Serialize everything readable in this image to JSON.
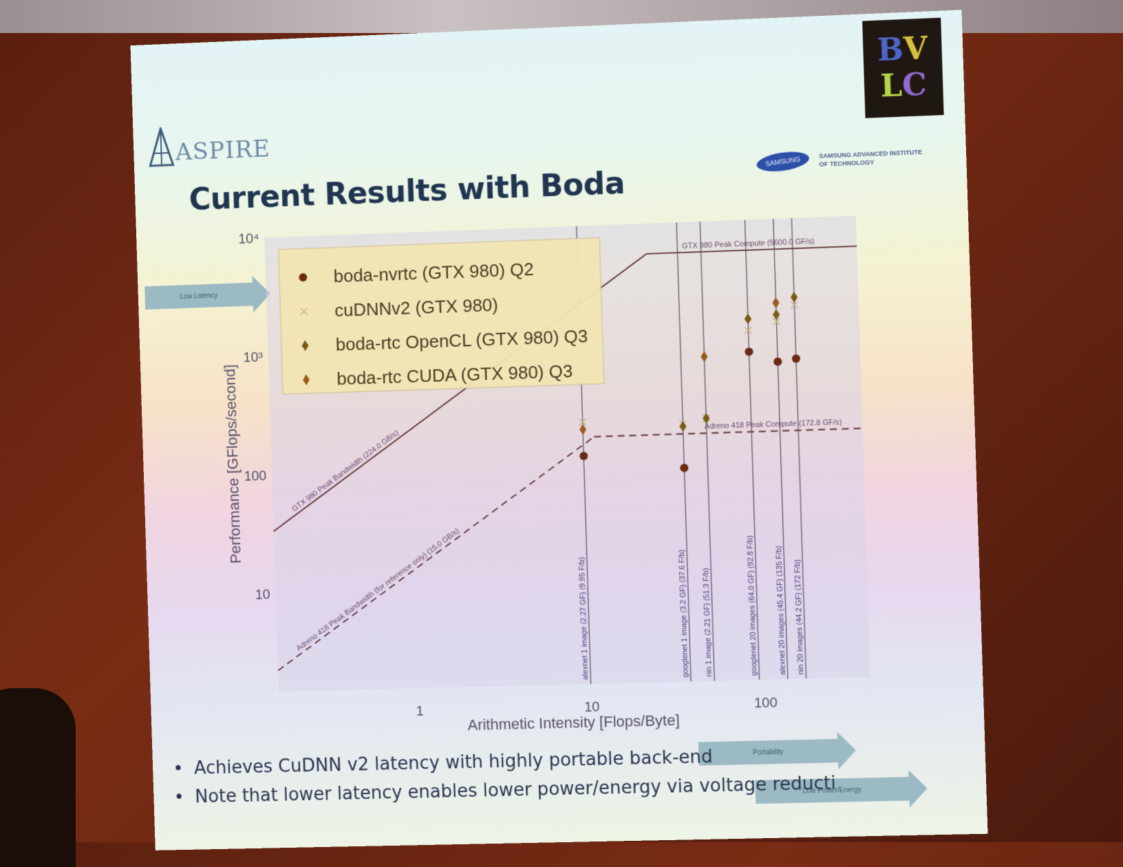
{
  "slide": {
    "title": "Current Results with Boda",
    "logo_left": "ASPIRE",
    "logo_right": "BVLC",
    "samsung_badge": "SAMSUNG",
    "samsung_caption": "SAMSUNG ADVANCED INSTITUTE OF TECHNOLOGY",
    "arrows": {
      "low_latency": "Low Latency",
      "portability": "Portability",
      "low_power": "Low Power/Energy"
    },
    "bullets": [
      "Achieves CuDNN v2 latency with highly portable back-end",
      "Note that lower latency enables lower power/energy via voltage reducti"
    ]
  },
  "chart_data": {
    "type": "scatter",
    "xscale": "log",
    "yscale": "log",
    "xlim": [
      0.15,
      400
    ],
    "ylim": [
      1.5,
      10000
    ],
    "xlabel": "Arithmetic Intensity [Flops/Byte]",
    "ylabel": "Performance [GFlops/second]",
    "xticks": [
      {
        "v": 1,
        "label": "1"
      },
      {
        "v": 10,
        "label": "10"
      },
      {
        "v": 100,
        "label": "100"
      }
    ],
    "yticks": [
      {
        "v": 10,
        "label": "10"
      },
      {
        "v": 100,
        "label": "100"
      },
      {
        "v": 1000,
        "label": "10³"
      },
      {
        "v": 10000,
        "label": "10⁴"
      }
    ],
    "legend_position": "top-left",
    "colors": {
      "nvrtc": "#6b2a12",
      "cudnn": "#c9b38f",
      "opencl": "#7a5a16",
      "cuda": "#9a5a1e",
      "roofline": "#5e3030",
      "vline": "#5a4a6a"
    },
    "series": [
      {
        "name": "boda-nvrtc (GTX 980) Q2",
        "marker": "circle",
        "points": [
          [
            9.95,
            120
          ],
          [
            37.6,
            90
          ],
          [
            92.8,
            800
          ],
          [
            135,
            650
          ],
          [
            172,
            680
          ]
        ]
      },
      {
        "name": "cuDNNv2 (GTX 980)",
        "marker": "x",
        "points": [
          [
            9.95,
            230
          ],
          [
            37.6,
            210
          ],
          [
            51.3,
            230
          ],
          [
            92.8,
            1200
          ],
          [
            135,
            1400
          ],
          [
            172,
            1900
          ]
        ]
      },
      {
        "name": "boda-rtc OpenCL (GTX 980) Q3",
        "marker": "diamond",
        "points": [
          [
            37.6,
            200
          ],
          [
            51.3,
            230
          ],
          [
            92.8,
            1500
          ],
          [
            135,
            1600
          ],
          [
            172,
            2200
          ]
        ]
      },
      {
        "name": "boda-rtc CUDA (GTX 980) Q3",
        "marker": "diamond",
        "points": [
          [
            9.95,
            200
          ],
          [
            51.3,
            750
          ],
          [
            135,
            2000
          ]
        ]
      }
    ],
    "rooflines": [
      {
        "label": "GTX 980 Peak Compute (5600.0 GF/s)",
        "style": "solid"
      },
      {
        "label": "GTX 980 Peak Bandwidth (224.0 GB/s)",
        "style": "solid"
      },
      {
        "label": "Adreno 418 Peak Compute (172.8 GF/s)",
        "style": "dashed"
      },
      {
        "label": "Adreno 418 Peak Bandwidth (for reference only) (15.0 GB/s)",
        "style": "dashed"
      }
    ],
    "vertical_lines": [
      {
        "x": 9.95,
        "label": "alexnet 1 image (2.27 GF) (9.95 F/b)"
      },
      {
        "x": 37.6,
        "label": "googlenet 1 image (3.2 GF) (37.6 F/b)"
      },
      {
        "x": 51.3,
        "label": "nin 1 image (2.21 GF) (51.3 F/b)"
      },
      {
        "x": 92.8,
        "label": "googlenet 20 images (64.0 GF) (92.8 F/b)"
      },
      {
        "x": 135,
        "label": "alexnet 20 images (45.4 GF) (135 F/b)"
      },
      {
        "x": 172,
        "label": "nin 20 images (44.2 GF) (172 F/b)"
      }
    ]
  }
}
